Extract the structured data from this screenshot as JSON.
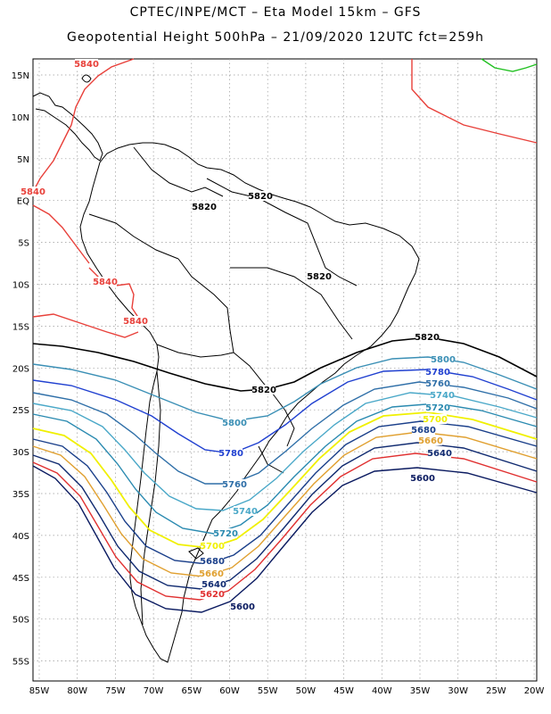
{
  "title_line1": "CPTEC/INPE/MCT  –   Eta Model 15km  –  GFS",
  "title_line2": "Geopotential Height 500hPa  –  21/09/2020 12UTC fct=259h",
  "lat_ticks": [
    "15N",
    "10N",
    "5N",
    "EQ",
    "5S",
    "10S",
    "15S",
    "20S",
    "25S",
    "30S",
    "35S",
    "40S",
    "45S",
    "50S",
    "55S"
  ],
  "lon_ticks": [
    "85W",
    "80W",
    "75W",
    "70W",
    "65W",
    "60W",
    "55W",
    "50W",
    "45W",
    "40W",
    "35W",
    "30W",
    "25W",
    "20W"
  ],
  "colors": {
    "5840": "#e8403a",
    "5820": "#000000",
    "5800": "#3a8fb5",
    "5780": "#2040d0",
    "5760": "#2f6fa8",
    "5740": "#4aa8c8",
    "5720": "#2a8ab0",
    "5700": "#f0f000",
    "5680": "#1a3f8a",
    "5660": "#e0a030",
    "5640": "#102a70",
    "5620": "#e03030",
    "5600": "#0a1a60",
    "5880": "#20c020"
  },
  "labels": [
    {
      "text": "5840",
      "color_key": "5840"
    },
    {
      "text": "5840",
      "color_key": "5840"
    },
    {
      "text": "5840",
      "color_key": "5840"
    },
    {
      "text": "5840",
      "color_key": "5840"
    },
    {
      "text": "5820",
      "color_key": "5820"
    },
    {
      "text": "5820",
      "color_key": "5820"
    },
    {
      "text": "5820",
      "color_key": "5820"
    },
    {
      "text": "5820",
      "color_key": "5820"
    },
    {
      "text": "5820",
      "color_key": "5820"
    },
    {
      "text": "5800",
      "color_key": "5800"
    },
    {
      "text": "5800",
      "color_key": "5800"
    },
    {
      "text": "5780",
      "color_key": "5780"
    },
    {
      "text": "5780",
      "color_key": "5780"
    },
    {
      "text": "5760",
      "color_key": "5760"
    },
    {
      "text": "5760",
      "color_key": "5760"
    },
    {
      "text": "5740",
      "color_key": "5740"
    },
    {
      "text": "5740",
      "color_key": "5740"
    },
    {
      "text": "5720",
      "color_key": "5720"
    },
    {
      "text": "5720",
      "color_key": "5720"
    },
    {
      "text": "5700",
      "color_key": "5700"
    },
    {
      "text": "5700",
      "color_key": "5700"
    },
    {
      "text": "5680",
      "color_key": "5680"
    },
    {
      "text": "5680",
      "color_key": "5680"
    },
    {
      "text": "5660",
      "color_key": "5660"
    },
    {
      "text": "5660",
      "color_key": "5660"
    },
    {
      "text": "5640",
      "color_key": "5640"
    },
    {
      "text": "5640",
      "color_key": "5640"
    },
    {
      "text": "5620",
      "color_key": "5620"
    },
    {
      "text": "5600",
      "color_key": "5600"
    },
    {
      "text": "5600",
      "color_key": "5600"
    }
  ]
}
